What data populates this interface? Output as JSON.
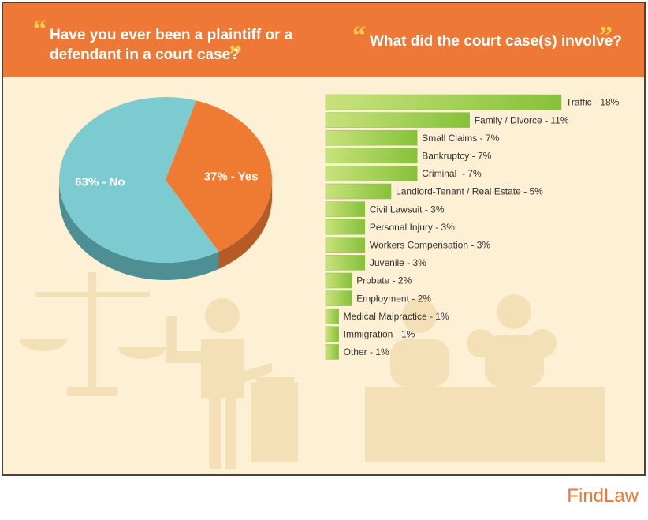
{
  "chart_data": [
    {
      "type": "pie",
      "title": [
        "Have you ever been a plaintiff or a",
        "defendant in a court case?"
      ],
      "values": [
        63,
        37
      ],
      "value_labels": [
        "63% - No",
        "37% - Yes"
      ],
      "colors": [
        "#7ccbd0",
        "#ef7a32"
      ],
      "side_colors": [
        "#4d8f93",
        "#b65a26"
      ]
    },
    {
      "type": "barh",
      "title": "What did the court case(s) involve?",
      "values": [
        18,
        11,
        7,
        7,
        7,
        5,
        3,
        3,
        3,
        3,
        2,
        2,
        1,
        1,
        1
      ],
      "value_labels": [
        "Traffic - 18%",
        "Family / Divorce - 11%",
        "Small Claims - 7%",
        "Bankruptcy - 7%",
        "Criminal  - 7%",
        "Landlord-Tenant / Real Estate - 5%",
        "Civil Lawsuit - 3%",
        "Personal Injury - 3%",
        "Workers Compensation - 3%",
        "Juvenile - 3%",
        "Probate - 2%",
        "Employment - 2%",
        "Medical Malpractice - 1%",
        "Immigration - 1%",
        "Other - 1%"
      ],
      "color": "#8cc43f"
    }
  ],
  "quote_marks": [
    "“",
    "”"
  ],
  "brand": "FindLaw"
}
